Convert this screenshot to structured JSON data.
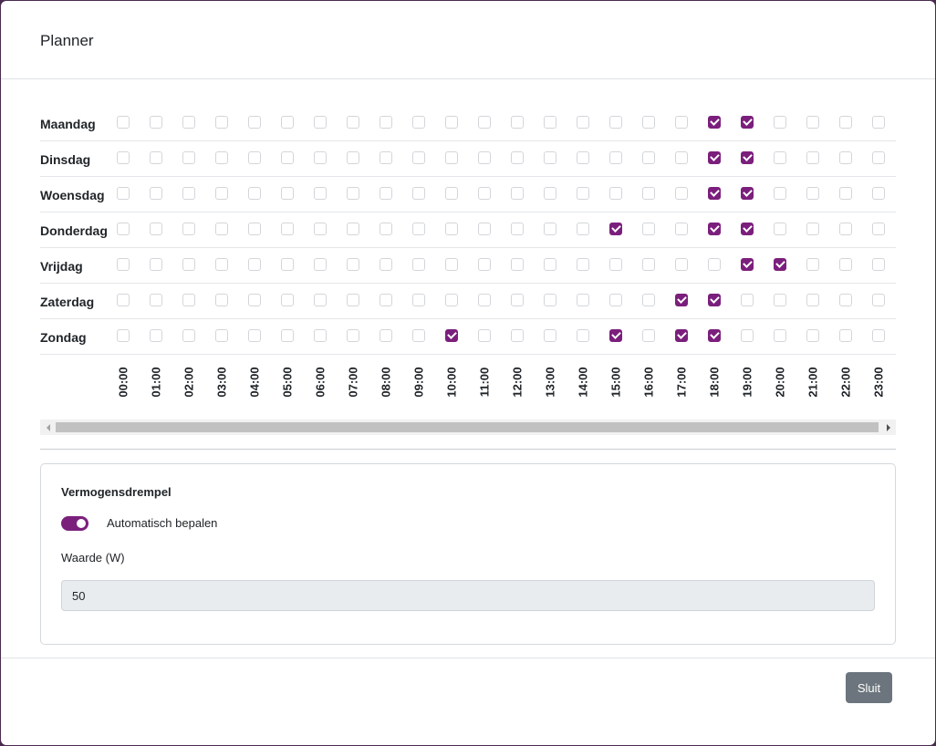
{
  "dialog": {
    "title": "Planner",
    "close_label": "Sluit"
  },
  "planner": {
    "days": [
      {
        "label": "Maandag",
        "checked_hours": [
          "18:00",
          "19:00"
        ]
      },
      {
        "label": "Dinsdag",
        "checked_hours": [
          "18:00",
          "19:00"
        ]
      },
      {
        "label": "Woensdag",
        "checked_hours": [
          "18:00",
          "19:00"
        ]
      },
      {
        "label": "Donderdag",
        "checked_hours": [
          "15:00",
          "18:00",
          "19:00"
        ]
      },
      {
        "label": "Vrijdag",
        "checked_hours": [
          "19:00",
          "20:00"
        ]
      },
      {
        "label": "Zaterdag",
        "checked_hours": [
          "17:00",
          "18:00"
        ]
      },
      {
        "label": "Zondag",
        "checked_hours": [
          "10:00",
          "15:00",
          "17:00",
          "18:00"
        ]
      }
    ],
    "hours": [
      "00:00",
      "01:00",
      "02:00",
      "03:00",
      "04:00",
      "05:00",
      "06:00",
      "07:00",
      "08:00",
      "09:00",
      "10:00",
      "11:00",
      "12:00",
      "13:00",
      "14:00",
      "15:00",
      "16:00",
      "17:00",
      "18:00",
      "19:00",
      "20:00",
      "21:00",
      "22:00",
      "23:00"
    ]
  },
  "threshold": {
    "title": "Vermogensdrempel",
    "auto_label": "Automatisch bepalen",
    "auto_enabled": true,
    "value_label": "Waarde (W)",
    "value": "50"
  },
  "colors": {
    "accent": "#7b1f7c",
    "button_secondary": "#6c757d"
  }
}
